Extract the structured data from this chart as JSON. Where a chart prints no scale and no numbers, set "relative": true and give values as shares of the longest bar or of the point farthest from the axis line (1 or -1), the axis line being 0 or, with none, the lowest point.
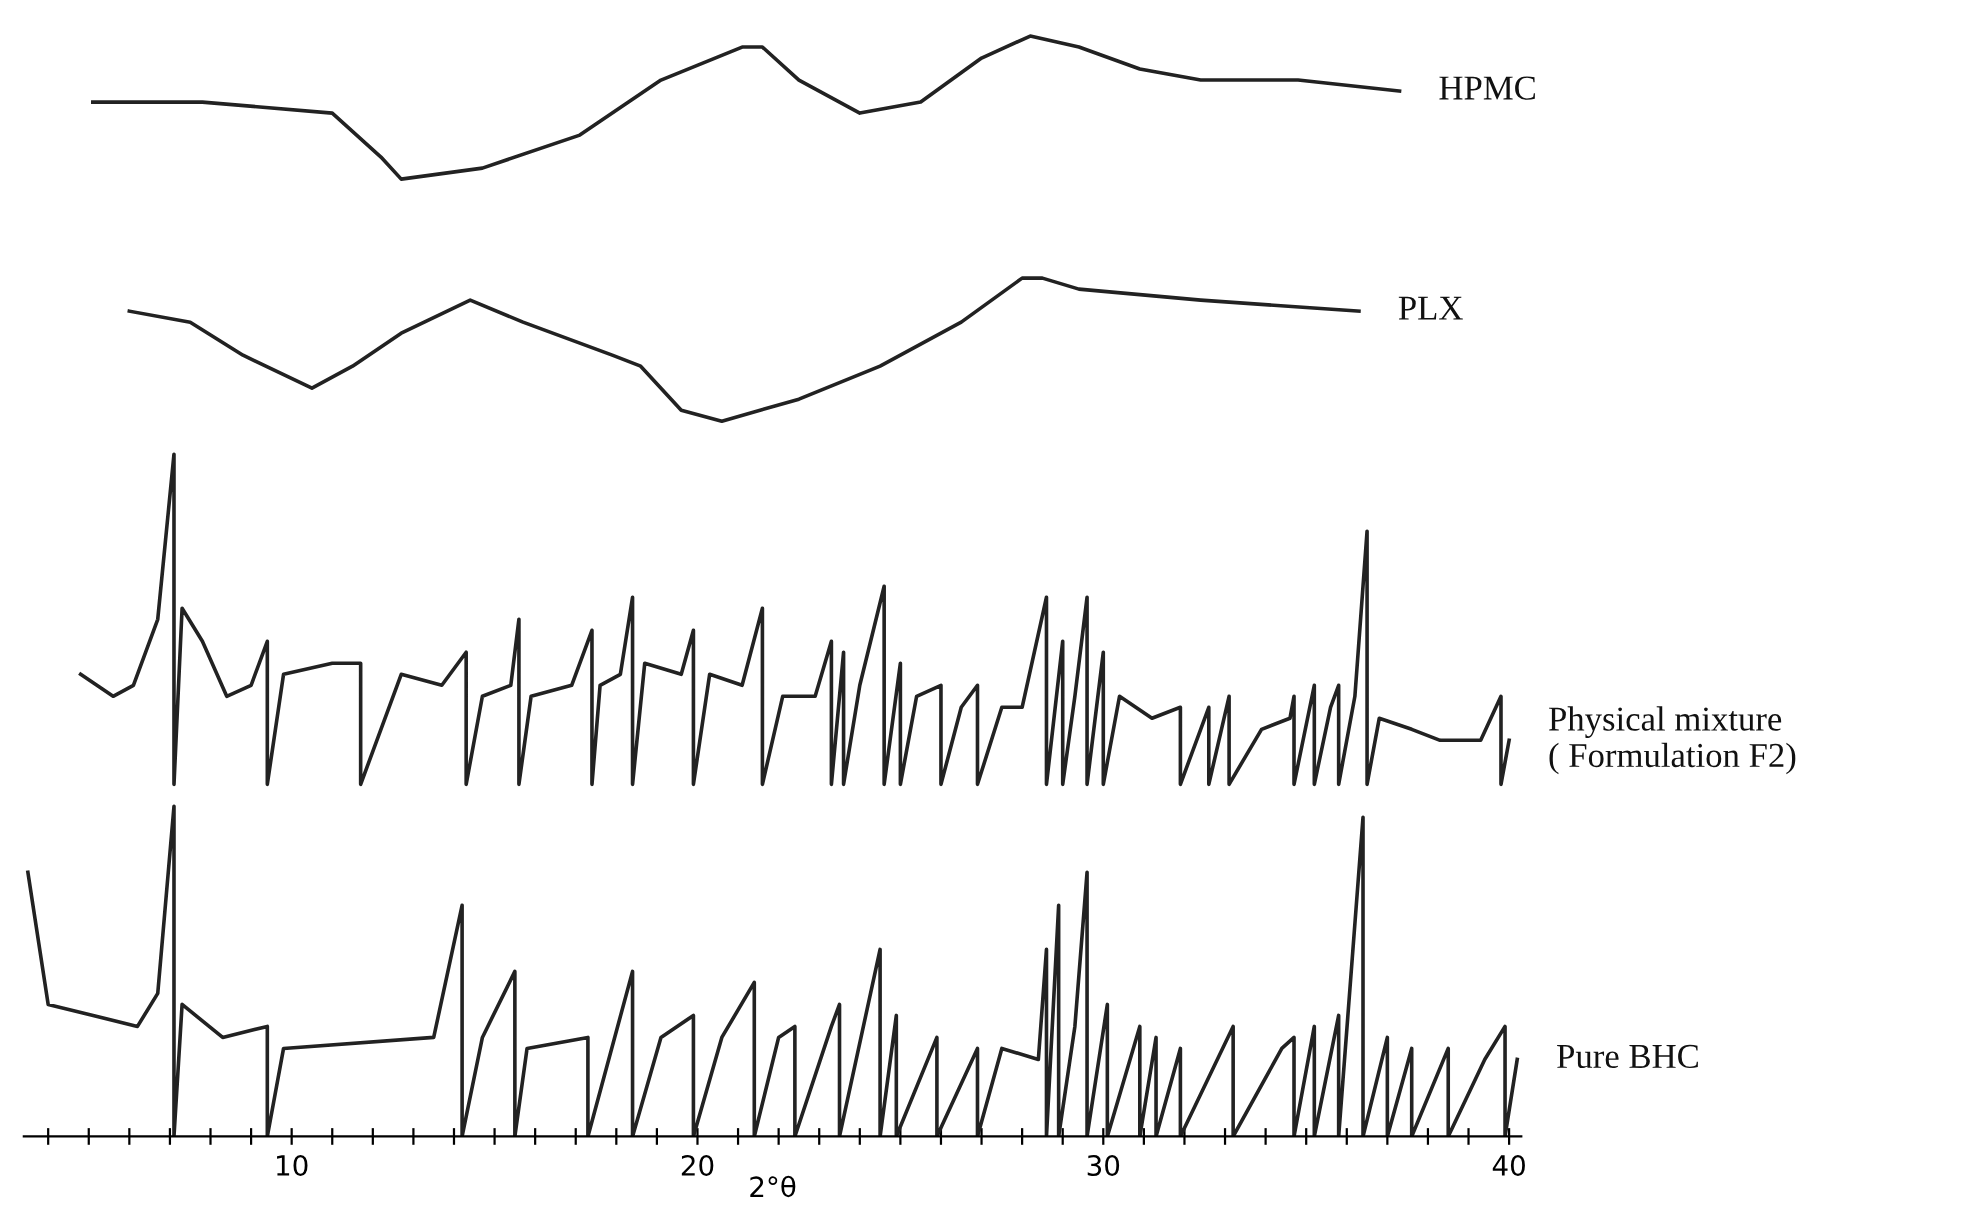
{
  "chart_data": {
    "type": "line",
    "relative": true,
    "xlabel": "2°θ",
    "tick_labels": "x",
    "grid": false,
    "legend": false,
    "marker": "none",
    "line_style": "solid",
    "xlim": [
      3.4,
      40.3
    ],
    "xticks": [
      {
        "value": 4,
        "label": null
      },
      {
        "value": 5,
        "label": null
      },
      {
        "value": 6,
        "label": null
      },
      {
        "value": 7,
        "label": null
      },
      {
        "value": 8,
        "label": null
      },
      {
        "value": 9,
        "label": null
      },
      10,
      {
        "value": 11,
        "label": null
      },
      {
        "value": 12,
        "label": null
      },
      {
        "value": 13,
        "label": null
      },
      {
        "value": 14,
        "label": null
      },
      {
        "value": 15,
        "label": null
      },
      {
        "value": 16,
        "label": null
      },
      {
        "value": 17,
        "label": null
      },
      {
        "value": 18,
        "label": null
      },
      {
        "value": 19,
        "label": null
      },
      20,
      {
        "value": 21,
        "label": null
      },
      {
        "value": 22,
        "label": null
      },
      {
        "value": 23,
        "label": null
      },
      {
        "value": 24,
        "label": null
      },
      {
        "value": 25,
        "label": null
      },
      {
        "value": 26,
        "label": null
      },
      {
        "value": 27,
        "label": null
      },
      {
        "value": 28,
        "label": null
      },
      {
        "value": 29,
        "label": null
      },
      30,
      {
        "value": 31,
        "label": null
      },
      {
        "value": 32,
        "label": null
      },
      {
        "value": 33,
        "label": null
      },
      {
        "value": 34,
        "label": null
      },
      {
        "value": 35,
        "label": null
      },
      {
        "value": 36,
        "label": null
      },
      {
        "value": 37,
        "label": null
      },
      {
        "value": 38,
        "label": null
      },
      {
        "value": 39,
        "label": null
      },
      40
    ],
    "series": [
      {
        "name": "HPMC",
        "color": "#222222",
        "x": [
          5.1,
          7.8,
          11.0,
          11.3,
          12.2,
          12.7,
          14.7,
          17.1,
          19.1,
          21.1,
          21.6,
          22.5,
          24.0,
          25.5,
          27.0,
          28.2,
          29.4,
          30.9,
          32.4,
          34.8,
          37.3
        ],
        "values": [
          0.94,
          0.94,
          0.93,
          0.92,
          0.89,
          0.87,
          0.88,
          0.91,
          0.96,
          0.99,
          0.99,
          0.96,
          0.93,
          0.94,
          0.98,
          1.0,
          0.99,
          0.97,
          0.96,
          0.96,
          0.95
        ]
      },
      {
        "name": "PLX",
        "color": "#222222",
        "x": [
          6.0,
          7.5,
          8.8,
          10.5,
          11.5,
          12.7,
          14.4,
          15.7,
          17.9,
          18.6,
          19.6,
          20.6,
          22.5,
          24.5,
          26.5,
          28.0,
          28.5,
          29.4,
          32.4,
          36.3
        ],
        "values": [
          0.75,
          0.74,
          0.71,
          0.68,
          0.7,
          0.73,
          0.76,
          0.74,
          0.71,
          0.7,
          0.66,
          0.65,
          0.67,
          0.7,
          0.74,
          0.78,
          0.78,
          0.77,
          0.76,
          0.75
        ]
      },
      {
        "name": "Physical mixture\n( Formulation F2)",
        "color": "#222222",
        "x": [
          4.8,
          5.6,
          6.1,
          6.7,
          7.1,
          7.1,
          7.3,
          7.8,
          8.4,
          9.0,
          9.4,
          9.4,
          9.8,
          11.0,
          11.7,
          11.7,
          12.7,
          13.7,
          14.3,
          14.3,
          14.7,
          15.4,
          15.6,
          15.6,
          15.9,
          16.9,
          17.4,
          17.4,
          17.6,
          18.1,
          18.4,
          18.4,
          18.7,
          19.6,
          19.9,
          19.9,
          20.3,
          21.1,
          21.6,
          21.6,
          22.1,
          22.9,
          23.3,
          23.3,
          23.6,
          23.6,
          24.0,
          24.6,
          24.6,
          25.0,
          25.0,
          25.4,
          26.0,
          26.0,
          26.5,
          26.9,
          26.9,
          27.5,
          28.0,
          28.6,
          28.6,
          29.0,
          29.0,
          29.3,
          29.6,
          29.6,
          30.0,
          30.0,
          30.4,
          31.2,
          31.9,
          31.9,
          32.4,
          32.6,
          32.6,
          33.1,
          33.1,
          33.9,
          34.6,
          34.7,
          34.7,
          35.2,
          35.2,
          35.6,
          35.8,
          35.8,
          36.2,
          36.5,
          36.5,
          36.8,
          37.6,
          38.3,
          39.3,
          39.8,
          39.8,
          40.0
        ],
        "values": [
          0.42,
          0.4,
          0.41,
          0.47,
          0.62,
          0.32,
          0.48,
          0.45,
          0.4,
          0.41,
          0.45,
          0.32,
          0.42,
          0.43,
          0.43,
          0.32,
          0.42,
          0.41,
          0.44,
          0.32,
          0.4,
          0.41,
          0.47,
          0.32,
          0.4,
          0.41,
          0.46,
          0.32,
          0.41,
          0.42,
          0.49,
          0.32,
          0.43,
          0.42,
          0.46,
          0.32,
          0.42,
          0.41,
          0.48,
          0.32,
          0.4,
          0.4,
          0.45,
          0.32,
          0.44,
          0.32,
          0.41,
          0.5,
          0.32,
          0.43,
          0.32,
          0.4,
          0.41,
          0.32,
          0.39,
          0.41,
          0.32,
          0.39,
          0.39,
          0.49,
          0.32,
          0.45,
          0.32,
          0.4,
          0.49,
          0.32,
          0.44,
          0.32,
          0.4,
          0.38,
          0.39,
          0.32,
          0.37,
          0.39,
          0.32,
          0.4,
          0.32,
          0.37,
          0.38,
          0.4,
          0.32,
          0.41,
          0.32,
          0.39,
          0.41,
          0.32,
          0.4,
          0.55,
          0.32,
          0.38,
          0.37,
          0.36,
          0.36,
          0.4,
          0.32,
          0.36
        ]
      },
      {
        "name": "Pure BHC",
        "color": "#222222",
        "x": [
          3.5,
          4.0,
          6.2,
          6.7,
          7.1,
          7.1,
          7.3,
          8.3,
          9.4,
          9.4,
          9.8,
          13.5,
          14.2,
          14.2,
          14.7,
          15.5,
          15.5,
          15.8,
          17.3,
          17.3,
          18.4,
          18.4,
          19.1,
          19.9,
          19.9,
          20.6,
          21.4,
          21.4,
          22.0,
          22.4,
          22.4,
          23.3,
          23.5,
          23.5,
          24.5,
          24.5,
          24.9,
          24.9,
          25.9,
          25.9,
          26.9,
          26.9,
          27.5,
          28.4,
          28.6,
          28.6,
          28.9,
          28.9,
          29.3,
          29.6,
          29.6,
          30.1,
          30.1,
          30.9,
          30.9,
          31.3,
          31.3,
          31.9,
          31.9,
          33.2,
          33.2,
          34.4,
          34.7,
          34.7,
          35.2,
          35.2,
          35.8,
          35.8,
          36.4,
          36.4,
          37.0,
          37.0,
          37.6,
          37.6,
          38.5,
          38.5,
          39.4,
          39.9,
          39.9,
          40.2
        ],
        "values": [
          0.24,
          0.12,
          0.1,
          0.13,
          0.3,
          0.0,
          0.12,
          0.09,
          0.1,
          0.0,
          0.08,
          0.09,
          0.21,
          0.0,
          0.09,
          0.15,
          0.0,
          0.08,
          0.09,
          0.0,
          0.15,
          0.0,
          0.09,
          0.11,
          0.0,
          0.09,
          0.14,
          0.0,
          0.09,
          0.1,
          0.0,
          0.1,
          0.12,
          0.0,
          0.17,
          0.0,
          0.11,
          0.0,
          0.09,
          0.0,
          0.08,
          0.0,
          0.08,
          0.07,
          0.17,
          0.0,
          0.21,
          0.0,
          0.1,
          0.24,
          0.0,
          0.12,
          0.0,
          0.1,
          0.0,
          0.09,
          0.0,
          0.08,
          0.0,
          0.1,
          0.0,
          0.08,
          0.09,
          0.0,
          0.1,
          0.0,
          0.11,
          0.0,
          0.29,
          0.0,
          0.09,
          0.0,
          0.08,
          0.0,
          0.08,
          0.0,
          0.07,
          0.1,
          0.0,
          0.07
        ]
      }
    ]
  }
}
